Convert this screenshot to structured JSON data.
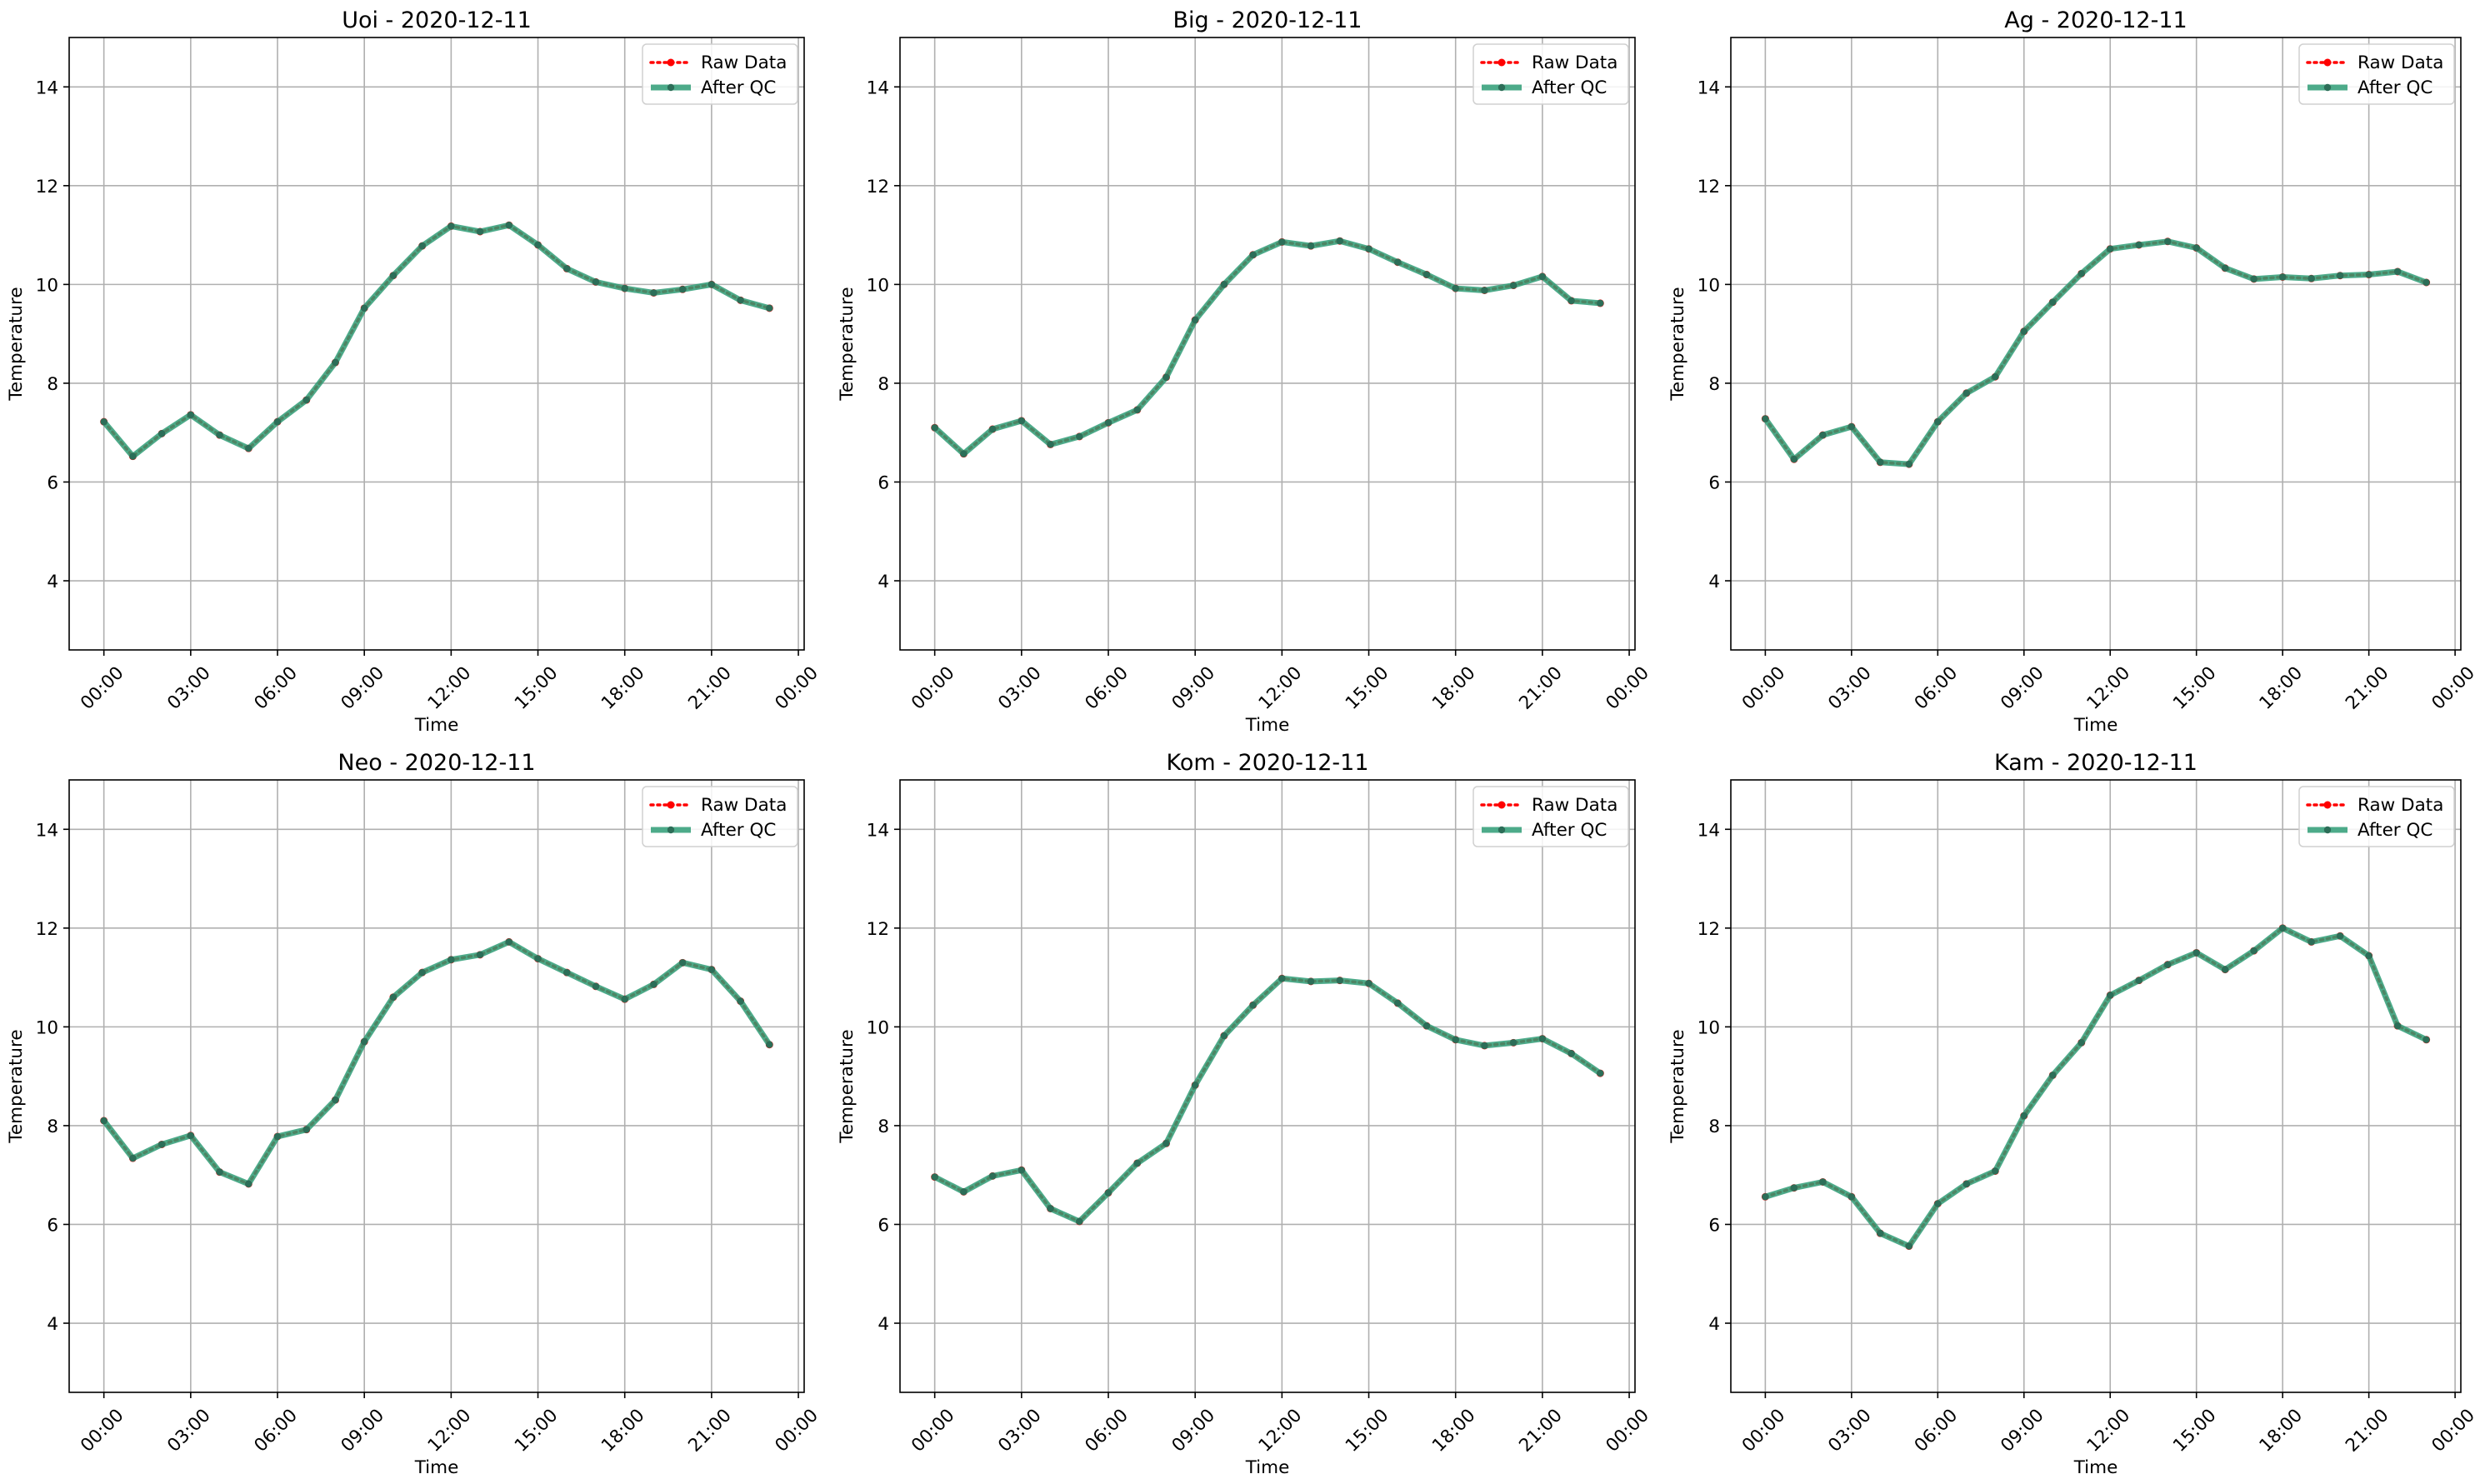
{
  "figure": {
    "legend_labels": {
      "raw": "Raw Data",
      "qc": "After QC"
    },
    "colors": {
      "raw": "#ff0000",
      "qc": "#2e9c76",
      "qc_marker": "#2c6e58",
      "grid": "#b0b0b0"
    },
    "xlabel": "Time",
    "ylabel": "Temperature",
    "x_ticks": [
      "00:00",
      "03:00",
      "06:00",
      "09:00",
      "12:00",
      "15:00",
      "18:00",
      "21:00",
      "00:00"
    ],
    "y_ticks": [
      "4",
      "6",
      "8",
      "10",
      "12",
      "14"
    ]
  },
  "chart_data": [
    {
      "type": "line",
      "title": "Uoi - 2020-12-11",
      "xlabel": "Time",
      "ylabel": "Temperature",
      "x_hours": [
        0,
        1,
        2,
        3,
        4,
        5,
        6,
        7,
        8,
        9,
        10,
        11,
        12,
        13,
        14,
        15,
        16,
        17,
        18,
        19,
        20,
        21,
        22,
        23
      ],
      "ylim": [
        2.6,
        15.0
      ],
      "grid": true,
      "legend": "top-right",
      "series": [
        {
          "name": "Raw Data",
          "values": [
            7.22,
            6.52,
            6.98,
            7.36,
            6.95,
            6.68,
            7.22,
            7.66,
            8.42,
            9.52,
            10.18,
            10.78,
            11.18,
            11.07,
            11.2,
            10.8,
            10.32,
            10.05,
            9.92,
            9.83,
            9.9,
            10.0,
            9.68,
            9.52
          ]
        },
        {
          "name": "After QC",
          "values": [
            7.22,
            6.52,
            6.98,
            7.36,
            6.95,
            6.68,
            7.22,
            7.66,
            8.42,
            9.52,
            10.18,
            10.78,
            11.18,
            11.07,
            11.2,
            10.8,
            10.32,
            10.05,
            9.92,
            9.83,
            9.9,
            10.0,
            9.68,
            9.52
          ]
        }
      ]
    },
    {
      "type": "line",
      "title": "Big - 2020-12-11",
      "xlabel": "Time",
      "ylabel": "Temperature",
      "x_hours": [
        0,
        1,
        2,
        3,
        4,
        5,
        6,
        7,
        8,
        9,
        10,
        11,
        12,
        13,
        14,
        15,
        16,
        17,
        18,
        19,
        20,
        21,
        22,
        23
      ],
      "ylim": [
        2.6,
        15.0
      ],
      "grid": true,
      "legend": "top-right",
      "series": [
        {
          "name": "Raw Data",
          "values": [
            7.1,
            6.57,
            7.07,
            7.24,
            6.76,
            6.92,
            7.2,
            7.46,
            8.12,
            9.28,
            10.0,
            10.6,
            10.86,
            10.78,
            10.88,
            10.72,
            10.45,
            10.2,
            9.92,
            9.88,
            9.98,
            10.16,
            9.67,
            9.62
          ]
        },
        {
          "name": "After QC",
          "values": [
            7.1,
            6.57,
            7.07,
            7.24,
            6.76,
            6.92,
            7.2,
            7.46,
            8.12,
            9.28,
            10.0,
            10.6,
            10.86,
            10.78,
            10.88,
            10.72,
            10.45,
            10.2,
            9.92,
            9.88,
            9.98,
            10.16,
            9.67,
            9.62
          ]
        }
      ]
    },
    {
      "type": "line",
      "title": "Ag - 2020-12-11",
      "xlabel": "Time",
      "ylabel": "Temperature",
      "x_hours": [
        0,
        1,
        2,
        3,
        4,
        5,
        6,
        7,
        8,
        9,
        10,
        11,
        12,
        13,
        14,
        15,
        16,
        17,
        18,
        19,
        20,
        21,
        22,
        23
      ],
      "ylim": [
        2.6,
        15.0
      ],
      "grid": true,
      "legend": "top-right",
      "series": [
        {
          "name": "Raw Data",
          "values": [
            7.28,
            6.46,
            6.95,
            7.12,
            6.4,
            6.36,
            7.22,
            7.8,
            8.13,
            9.05,
            9.64,
            10.22,
            10.72,
            10.8,
            10.87,
            10.74,
            10.33,
            10.11,
            10.15,
            10.12,
            10.18,
            10.2,
            10.26,
            10.04
          ]
        },
        {
          "name": "After QC",
          "values": [
            7.28,
            6.46,
            6.95,
            7.12,
            6.4,
            6.36,
            7.22,
            7.8,
            8.13,
            9.05,
            9.64,
            10.22,
            10.72,
            10.8,
            10.87,
            10.74,
            10.33,
            10.11,
            10.15,
            10.12,
            10.18,
            10.2,
            10.26,
            10.04
          ]
        }
      ]
    },
    {
      "type": "line",
      "title": "Neo - 2020-12-11",
      "xlabel": "Time",
      "ylabel": "Temperature",
      "x_hours": [
        0,
        1,
        2,
        3,
        4,
        5,
        6,
        7,
        8,
        9,
        10,
        11,
        12,
        13,
        14,
        15,
        16,
        17,
        18,
        19,
        20,
        21,
        22,
        23
      ],
      "ylim": [
        2.6,
        15.0
      ],
      "grid": true,
      "legend": "top-right",
      "series": [
        {
          "name": "Raw Data",
          "values": [
            8.1,
            7.34,
            7.62,
            7.8,
            7.06,
            6.82,
            7.78,
            7.92,
            8.52,
            9.7,
            10.6,
            11.1,
            11.36,
            11.46,
            11.72,
            11.38,
            11.1,
            10.82,
            10.56,
            10.86,
            11.3,
            11.16,
            10.52,
            9.64
          ]
        },
        {
          "name": "After QC",
          "values": [
            8.1,
            7.34,
            7.62,
            7.8,
            7.06,
            6.82,
            7.78,
            7.92,
            8.52,
            9.7,
            10.6,
            11.1,
            11.36,
            11.46,
            11.72,
            11.38,
            11.1,
            10.82,
            10.56,
            10.86,
            11.3,
            11.16,
            10.52,
            9.64
          ]
        }
      ]
    },
    {
      "type": "line",
      "title": "Kom - 2020-12-11",
      "xlabel": "Time",
      "ylabel": "Temperature",
      "x_hours": [
        0,
        1,
        2,
        3,
        4,
        5,
        6,
        7,
        8,
        9,
        10,
        11,
        12,
        13,
        14,
        15,
        16,
        17,
        18,
        19,
        20,
        21,
        22,
        23
      ],
      "ylim": [
        2.6,
        15.0
      ],
      "grid": true,
      "legend": "top-right",
      "series": [
        {
          "name": "Raw Data",
          "values": [
            6.96,
            6.66,
            6.98,
            7.1,
            6.32,
            6.06,
            6.64,
            7.24,
            7.64,
            8.82,
            9.82,
            10.44,
            10.98,
            10.92,
            10.94,
            10.88,
            10.48,
            10.02,
            9.74,
            9.62,
            9.68,
            9.76,
            9.46,
            9.06
          ]
        },
        {
          "name": "After QC",
          "values": [
            6.96,
            6.66,
            6.98,
            7.1,
            6.32,
            6.06,
            6.64,
            7.24,
            7.64,
            8.82,
            9.82,
            10.44,
            10.98,
            10.92,
            10.94,
            10.88,
            10.48,
            10.02,
            9.74,
            9.62,
            9.68,
            9.76,
            9.46,
            9.06
          ]
        }
      ]
    },
    {
      "type": "line",
      "title": "Kam - 2020-12-11",
      "xlabel": "Time",
      "ylabel": "Temperature",
      "x_hours": [
        0,
        1,
        2,
        3,
        4,
        5,
        6,
        7,
        8,
        9,
        10,
        11,
        12,
        13,
        14,
        15,
        16,
        17,
        18,
        19,
        20,
        21,
        22,
        23
      ],
      "ylim": [
        2.6,
        15.0
      ],
      "grid": true,
      "legend": "top-right",
      "series": [
        {
          "name": "Raw Data",
          "values": [
            6.56,
            6.74,
            6.86,
            6.56,
            5.82,
            5.56,
            6.42,
            6.82,
            7.08,
            8.2,
            9.02,
            9.68,
            10.64,
            10.94,
            11.26,
            11.5,
            11.16,
            11.54,
            12.0,
            11.72,
            11.84,
            11.44,
            10.02,
            9.74
          ]
        },
        {
          "name": "After QC",
          "values": [
            6.56,
            6.74,
            6.86,
            6.56,
            5.82,
            5.56,
            6.42,
            6.82,
            7.08,
            8.2,
            9.02,
            9.68,
            10.64,
            10.94,
            11.26,
            11.5,
            11.16,
            11.54,
            12.0,
            11.72,
            11.84,
            11.44,
            10.02,
            9.74
          ]
        }
      ]
    }
  ]
}
